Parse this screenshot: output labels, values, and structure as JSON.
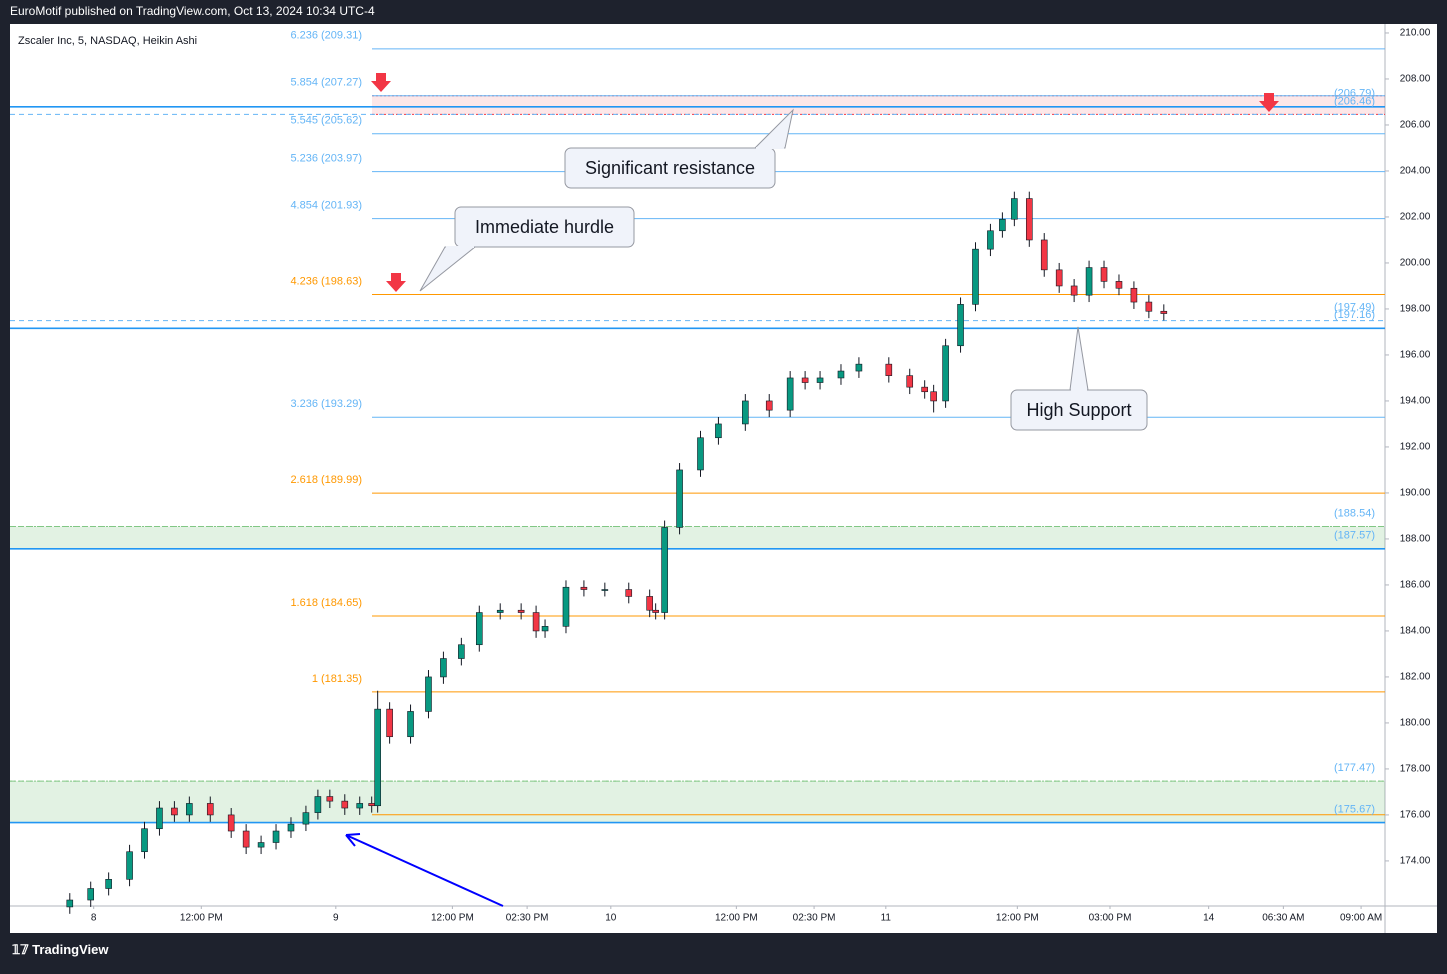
{
  "page": {
    "byline": "EuroMotif published on TradingView.com, Oct 13, 2024 10:34 UTC-4",
    "brand": "TradingView"
  },
  "chart_data": {
    "type": "candlestick",
    "title": "Zscaler Inc, 5, NASDAQ, Heikin Ashi",
    "up_color": "#089981",
    "down_color": "#f23645",
    "xlim": [
      0,
      460
    ],
    "ylim": [
      172.04,
      210.39
    ],
    "xticks": [
      {
        "value": 28,
        "label": "8"
      },
      {
        "value": 64,
        "label": "12:00 PM"
      },
      {
        "value": 109,
        "label": "9"
      },
      {
        "value": 148,
        "label": "12:00 PM"
      },
      {
        "value": 173,
        "label": "02:30 PM"
      },
      {
        "value": 201,
        "label": "10"
      },
      {
        "value": 243,
        "label": "12:00 PM"
      },
      {
        "value": 269,
        "label": "02:30 PM"
      },
      {
        "value": 293,
        "label": "11"
      },
      {
        "value": 337,
        "label": "12:00 PM"
      },
      {
        "value": 368,
        "label": "03:00 PM"
      },
      {
        "value": 401,
        "label": "14"
      },
      {
        "value": 426,
        "label": "06:30 AM"
      },
      {
        "value": 452,
        "label": "09:00 AM"
      }
    ],
    "yticks": [
      {
        "value": 174,
        "label": "174.00"
      },
      {
        "value": 176,
        "label": "176.00"
      },
      {
        "value": 178,
        "label": "178.00"
      },
      {
        "value": 180,
        "label": "180.00"
      },
      {
        "value": 182,
        "label": "182.00"
      },
      {
        "value": 184,
        "label": "184.00"
      },
      {
        "value": 186,
        "label": "186.00"
      },
      {
        "value": 188,
        "label": "188.00"
      },
      {
        "value": 190,
        "label": "190.00"
      },
      {
        "value": 192,
        "label": "192.00"
      },
      {
        "value": 194,
        "label": "194.00"
      },
      {
        "value": 196,
        "label": "196.00"
      },
      {
        "value": 198,
        "label": "198.00"
      },
      {
        "value": 200,
        "label": "200.00"
      },
      {
        "value": 202,
        "label": "202.00"
      },
      {
        "value": 204,
        "label": "204.00"
      },
      {
        "value": 206,
        "label": "206.00"
      },
      {
        "value": 208,
        "label": "208.00"
      },
      {
        "value": 210,
        "label": "210.00"
      }
    ],
    "x": [
      20,
      27,
      33,
      40,
      45,
      50,
      55,
      60,
      67,
      74,
      79,
      84,
      89,
      94,
      99,
      103,
      107,
      112,
      117,
      121,
      123,
      127,
      134,
      140,
      145,
      151,
      157,
      164,
      171,
      176,
      179,
      186,
      192,
      199,
      207,
      214,
      216,
      219,
      224,
      231,
      237,
      246,
      254,
      261,
      266,
      271,
      278,
      284,
      294,
      301,
      306,
      309,
      313,
      318,
      323,
      328,
      332,
      336,
      341,
      346,
      351,
      356,
      361,
      366,
      371,
      376,
      381,
      386
    ],
    "open": [
      172.0,
      172.3,
      172.8,
      173.2,
      174.4,
      175.4,
      176.3,
      176.0,
      176.5,
      176.0,
      175.3,
      174.6,
      174.8,
      175.3,
      175.6,
      176.1,
      176.8,
      176.6,
      176.3,
      176.5,
      176.4,
      180.6,
      179.4,
      180.5,
      182.0,
      182.8,
      183.4,
      184.8,
      184.9,
      184.8,
      184.0,
      184.2,
      185.9,
      185.8,
      185.8,
      185.5,
      184.9,
      184.8,
      188.5,
      191.0,
      192.4,
      193.0,
      194.0,
      193.6,
      195.0,
      194.8,
      195.0,
      195.3,
      195.6,
      195.1,
      194.6,
      194.4,
      194.0,
      196.4,
      198.2,
      200.6,
      201.4,
      201.9,
      202.8,
      201.0,
      199.7,
      199.0,
      198.6,
      199.8,
      199.2,
      198.9,
      198.3,
      197.9
    ],
    "high": [
      172.6,
      173.1,
      173.5,
      174.7,
      175.7,
      176.6,
      176.6,
      176.8,
      176.8,
      176.3,
      175.6,
      175.1,
      175.6,
      175.9,
      176.4,
      177.1,
      177.1,
      176.9,
      176.8,
      176.8,
      181.4,
      180.9,
      180.8,
      182.3,
      183.1,
      183.7,
      185.1,
      185.2,
      185.2,
      185.1,
      184.5,
      186.2,
      186.2,
      186.1,
      186.1,
      185.8,
      185.2,
      188.8,
      191.3,
      192.7,
      193.3,
      194.3,
      194.3,
      195.3,
      195.3,
      195.3,
      195.6,
      195.9,
      195.9,
      195.4,
      194.9,
      194.7,
      196.7,
      198.5,
      200.9,
      201.7,
      202.2,
      203.1,
      203.1,
      201.3,
      200.0,
      199.3,
      200.1,
      200.1,
      199.5,
      199.2,
      198.6,
      198.2
    ],
    "low": [
      171.7,
      172.0,
      172.5,
      172.9,
      174.1,
      175.1,
      175.7,
      175.7,
      175.7,
      175.0,
      174.3,
      174.3,
      174.5,
      175.0,
      175.3,
      175.8,
      176.3,
      176.0,
      176.0,
      176.1,
      176.1,
      179.1,
      179.1,
      180.2,
      181.7,
      182.5,
      183.1,
      184.5,
      184.5,
      183.7,
      183.7,
      183.9,
      185.5,
      185.5,
      185.2,
      184.6,
      184.5,
      184.5,
      188.2,
      190.7,
      192.1,
      192.7,
      193.3,
      193.3,
      194.5,
      194.5,
      194.7,
      195.0,
      194.8,
      194.3,
      194.1,
      193.5,
      193.7,
      196.1,
      197.9,
      200.3,
      201.1,
      201.6,
      200.7,
      199.4,
      198.7,
      198.3,
      198.3,
      198.9,
      198.6,
      198.0,
      197.6,
      197.5
    ],
    "close": [
      172.3,
      172.8,
      173.2,
      174.4,
      175.4,
      176.3,
      176.0,
      176.5,
      176.0,
      175.3,
      174.6,
      174.8,
      175.3,
      175.6,
      176.1,
      176.8,
      176.6,
      176.3,
      176.5,
      176.4,
      180.6,
      179.4,
      180.5,
      182.0,
      182.8,
      183.4,
      184.8,
      184.9,
      184.8,
      184.0,
      184.2,
      185.9,
      185.8,
      185.8,
      185.5,
      184.9,
      184.8,
      188.5,
      191.0,
      192.4,
      193.0,
      194.0,
      193.6,
      195.0,
      194.8,
      195.0,
      195.3,
      195.6,
      195.1,
      194.6,
      194.4,
      194.0,
      196.4,
      198.2,
      200.6,
      201.4,
      201.9,
      202.8,
      201.0,
      199.7,
      199.0,
      198.6,
      199.8,
      199.2,
      198.9,
      198.3,
      197.9,
      197.8
    ],
    "zones": [
      {
        "top": 207.27,
        "bottom": 206.46,
        "color": "rgba(242,54,69,0.12)",
        "edge": "#f23645",
        "from_fib": true
      },
      {
        "top": 188.54,
        "bottom": 187.57,
        "color": "rgba(76,175,80,0.16)",
        "edge": "#81c784",
        "from_fib": false
      },
      {
        "top": 177.47,
        "bottom": 175.67,
        "color": "rgba(76,175,80,0.16)",
        "edge": "#81c784",
        "from_fib": false
      }
    ],
    "levels": [
      {
        "value": 209.31,
        "label": "6.236 (209.31)",
        "color": "#64b5f6"
      },
      {
        "value": 207.27,
        "label": "5.854 (207.27)",
        "color": "#64b5f6"
      },
      {
        "value": 205.62,
        "label": "5.545 (205.62)",
        "color": "#64b5f6"
      },
      {
        "value": 203.97,
        "label": "5.236 (203.97)",
        "color": "#64b5f6"
      },
      {
        "value": 201.93,
        "label": "4.854 (201.93)",
        "color": "#64b5f6"
      },
      {
        "value": 198.63,
        "label": "4.236 (198.63)",
        "color": "#ff9800"
      },
      {
        "value": 193.29,
        "label": "3.236 (193.29)",
        "color": "#64b5f6"
      },
      {
        "value": 189.99,
        "label": "2.618 (189.99)",
        "color": "#ff9800"
      },
      {
        "value": 184.65,
        "label": "1.618 (184.65)",
        "color": "#ff9800"
      },
      {
        "value": 181.35,
        "label": "1 (181.35)",
        "color": "#ff9800"
      },
      {
        "value": 176.01,
        "color": "#ff9800"
      }
    ],
    "rays": [
      {
        "value": 206.79,
        "label": "(206.79)",
        "style": "solid",
        "color": "#2196f3"
      },
      {
        "value": 206.46,
        "label": "(206.46)",
        "style": "dashed",
        "color": "#64b5f6"
      },
      {
        "value": 197.49,
        "label": "(197.49)",
        "style": "dashed",
        "color": "#64b5f6"
      },
      {
        "value": 197.16,
        "label": "(197.16)",
        "style": "solid",
        "color": "#2196f3"
      },
      {
        "value": 188.54,
        "label": "(188.54)",
        "style": "dashed",
        "color": "#81c784"
      },
      {
        "value": 187.57,
        "label": "(187.57)",
        "style": "solid",
        "color": "#2196f3"
      },
      {
        "value": 177.47,
        "label": "(177.47)",
        "style": "dashed",
        "color": "#81c784"
      },
      {
        "value": 175.67,
        "label": "(175.67)",
        "style": "solid",
        "color": "#2196f3"
      }
    ],
    "annotations": [
      "Significant resistance",
      "Immediate hurdle",
      "High Support"
    ]
  }
}
